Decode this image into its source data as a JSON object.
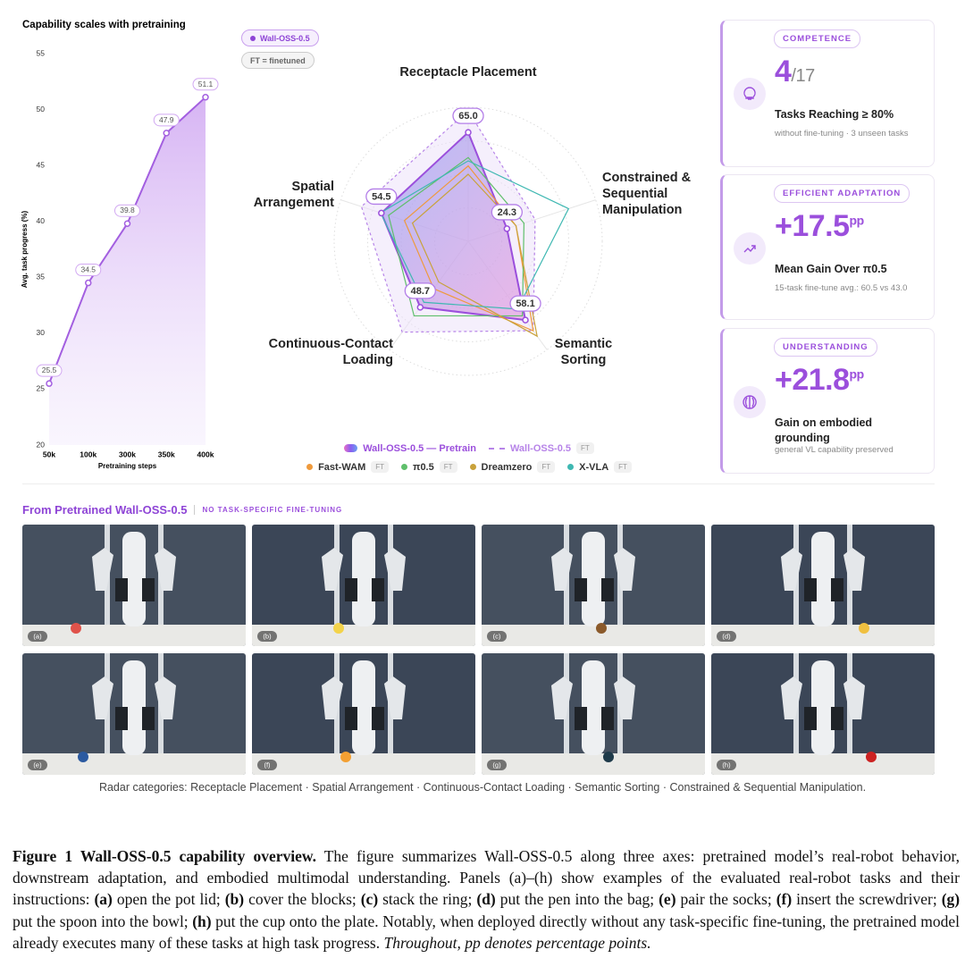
{
  "chart_data": [
    {
      "type": "line",
      "title": "Capability scales with pretraining",
      "x_label": "Pretraining steps",
      "y_label": "Avg. task progress (%)",
      "categories": [
        "50k",
        "100k",
        "300k",
        "350k",
        "400k"
      ],
      "values": [
        25.5,
        34.5,
        39.8,
        47.9,
        51.1
      ],
      "color": "#a35fe0",
      "ylim": [
        20,
        55
      ],
      "yticks": [
        20,
        25,
        30,
        35,
        40,
        45,
        50,
        55
      ],
      "grid": false
    },
    {
      "type": "radar",
      "badges": [
        "Wall-OSS-0.5",
        "FT = finetuned"
      ],
      "categories": [
        "Receptacle Placement",
        "Constrained & Sequential Manipulation",
        "Semantic Sorting",
        "Continuous-Contact Loading",
        "Spatial Arrangement"
      ],
      "rlim": [
        0,
        80
      ],
      "rticks": [
        20,
        40,
        60,
        80
      ],
      "series": [
        {
          "name": "Wall-OSS-0.5 — Pretrain",
          "color": "#9b4fdc",
          "values": [
            65.0,
            24.3,
            58.1,
            48.7,
            54.5
          ],
          "value_labels": [
            "65.0",
            "24.3",
            "58.1",
            "48.7",
            "54.5"
          ]
        },
        {
          "name": "Wall-OSS-0.5",
          "tag": "FT",
          "color": "#b784e8",
          "values": [
            78,
            42,
            66,
            67,
            67
          ]
        },
        {
          "name": "Fast-WAM",
          "tag": "FT",
          "color": "#ef9a3c",
          "values": [
            45,
            30,
            66,
            35,
            40
          ]
        },
        {
          "name": "π0.5",
          "tag": "FT",
          "color": "#5fbf6b",
          "values": [
            50,
            35,
            55,
            55,
            50
          ]
        },
        {
          "name": "Dreamzero",
          "tag": "FT",
          "color": "#c9a23b",
          "values": [
            40,
            30,
            70,
            30,
            35
          ]
        },
        {
          "name": "X-VLA",
          "tag": "FT",
          "color": "#3fb8b2",
          "values": [
            48,
            63,
            50,
            45,
            55
          ]
        }
      ]
    }
  ],
  "cards": [
    {
      "label": "COMPETENCE",
      "value": "4",
      "suffix": "/17",
      "caption": "Tasks Reaching ≥ 80%",
      "note": "without fine-tuning · 3 unseen tasks"
    },
    {
      "label": "EFFICIENT ADAPTATION",
      "value": "+17.5",
      "suffix": "pp",
      "caption": "Mean Gain Over π0.5",
      "note": "15-task fine-tune avg.: 60.5 vs 43.0"
    },
    {
      "label": "UNDERSTANDING",
      "value": "+21.8",
      "suffix": "pp",
      "caption": "Gain on embodied grounding",
      "note": "general VL capability preserved"
    }
  ],
  "gallery": {
    "title": "From Pretrained Wall-OSS-0.5",
    "subtitle": "NO TASK-SPECIFIC FINE-TUNING",
    "panels": [
      "(a)",
      "(b)",
      "(c)",
      "(d)",
      "(e)",
      "(f)",
      "(g)",
      "(h)"
    ],
    "footnote": "Radar categories: Receptacle Placement · Spatial Arrangement · Continuous-Contact Loading · Semantic Sorting · Constrained & Sequential Manipulation."
  },
  "caption": {
    "label": "Figure 1",
    "title": "Wall-OSS-0.5 capability overview.",
    "intro": "The figure summarizes Wall-OSS-0.5 along three axes: pretrained model’s real-robot behavior, downstream adaptation, and embodied multimodal understanding. Panels (a)–(h) show examples of the evaluated real-robot tasks and their instructions:",
    "tasks": [
      {
        "key": "(a)",
        "text": "open the pot lid;"
      },
      {
        "key": "(b)",
        "text": "cover the blocks;"
      },
      {
        "key": "(c)",
        "text": "stack the ring;"
      },
      {
        "key": "(d)",
        "text": "put the pen into the bag;"
      },
      {
        "key": "(e)",
        "text": "pair the socks;"
      },
      {
        "key": "(f)",
        "text": "insert the screwdriver;"
      },
      {
        "key": "(g)",
        "text": "put the spoon into the bowl;"
      },
      {
        "key": "(h)",
        "text": "put the cup onto the plate."
      }
    ],
    "outro": "Notably, when deployed directly without any task-specific fine-tuning, the pretrained model already executes many of these tasks at high task progress.",
    "note": "Throughout, pp denotes percentage points."
  }
}
